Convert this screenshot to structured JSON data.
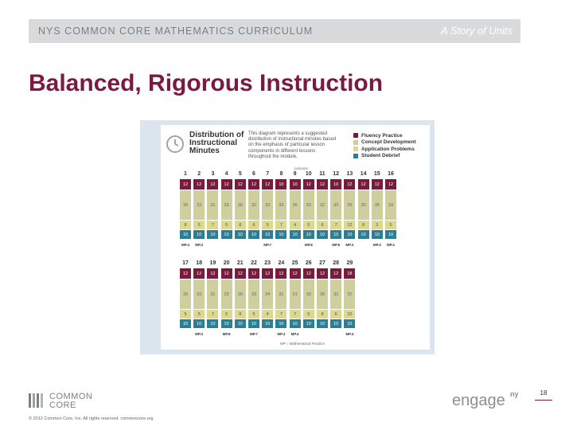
{
  "header": {
    "curriculum_label": "NYS COMMON CORE MATHEMATICS CURRICULUM",
    "series_label": "A Story of Units"
  },
  "slide_title": "Balanced, Rigorous Instruction",
  "figure": {
    "title": "Distribution of Instructional Minutes",
    "description": "This diagram represents a suggested distribution of instructional minutes based on the emphasis of particular lesson components in different lessons throughout the module.",
    "lessons_label": "Lessons",
    "legend": [
      {
        "label": "Fluency Practice",
        "color": "#7a1a3e"
      },
      {
        "label": "Concept Development",
        "color": "#cfcf9e"
      },
      {
        "label": "Application Problems",
        "color": "#dcd98a"
      },
      {
        "label": "Student Debrief",
        "color": "#2b7f94"
      }
    ],
    "rows": [
      {
        "lessons": [
          {
            "n": "1",
            "fluency": "12",
            "concept": "30",
            "app": "8",
            "debrief": "10"
          },
          {
            "n": "2",
            "fluency": "12",
            "concept": "33",
            "app": "5",
            "debrief": "10"
          },
          {
            "n": "3",
            "fluency": "12",
            "concept": "31",
            "app": "7",
            "debrief": "10"
          },
          {
            "n": "4",
            "fluency": "12",
            "concept": "33",
            "app": "5",
            "debrief": "10"
          },
          {
            "n": "5",
            "fluency": "12",
            "concept": "30",
            "app": "8",
            "debrief": "10"
          },
          {
            "n": "6",
            "fluency": "12",
            "concept": "32",
            "app": "6",
            "debrief": "10"
          },
          {
            "n": "7",
            "fluency": "12",
            "concept": "33",
            "app": "5",
            "debrief": "10"
          },
          {
            "n": "8",
            "fluency": "10",
            "concept": "33",
            "app": "7",
            "debrief": "10"
          },
          {
            "n": "9",
            "fluency": "10",
            "concept": "36",
            "app": "4",
            "debrief": "10"
          },
          {
            "n": "10",
            "fluency": "12",
            "concept": "33",
            "app": "5",
            "debrief": "10"
          },
          {
            "n": "11",
            "fluency": "12",
            "concept": "32",
            "app": "6",
            "debrief": "10"
          },
          {
            "n": "12",
            "fluency": "10",
            "concept": "33",
            "app": "7",
            "debrief": "10"
          },
          {
            "n": "13",
            "fluency": "12",
            "concept": "26",
            "app": "12",
            "debrief": "10"
          },
          {
            "n": "14",
            "fluency": "12",
            "concept": "30",
            "app": "8",
            "debrief": "10"
          },
          {
            "n": "15",
            "fluency": "12",
            "concept": "35",
            "app": "3",
            "debrief": "10"
          },
          {
            "n": "16",
            "fluency": "12",
            "concept": "33",
            "app": "5",
            "debrief": "10"
          }
        ],
        "mp_labels": [
          {
            "after": 0,
            "text": "MP.4"
          },
          {
            "after": 1,
            "text": "MP.2"
          },
          {
            "after": 6,
            "text": "MP.7"
          },
          {
            "after": 9,
            "text": "MP.8"
          },
          {
            "after": 11,
            "text": "MP.8"
          },
          {
            "after": 12,
            "text": "MP.3"
          },
          {
            "after": 14,
            "text": "MP.3"
          },
          {
            "after": 15,
            "text": "MP.2"
          }
        ]
      },
      {
        "lessons": [
          {
            "n": "17",
            "fluency": "12",
            "concept": "33",
            "app": "5",
            "debrief": "10"
          },
          {
            "n": "18",
            "fluency": "12",
            "concept": "33",
            "app": "5",
            "debrief": "10"
          },
          {
            "n": "19",
            "fluency": "12",
            "concept": "31",
            "app": "7",
            "debrief": "10"
          },
          {
            "n": "20",
            "fluency": "12",
            "concept": "33",
            "app": "5",
            "debrief": "10"
          },
          {
            "n": "21",
            "fluency": "12",
            "concept": "30",
            "app": "8",
            "debrief": "10"
          },
          {
            "n": "22",
            "fluency": "12",
            "concept": "33",
            "app": "5",
            "debrief": "10"
          },
          {
            "n": "23",
            "fluency": "12",
            "concept": "34",
            "app": "4",
            "debrief": "10"
          },
          {
            "n": "24",
            "fluency": "12",
            "concept": "31",
            "app": "7",
            "debrief": "10"
          },
          {
            "n": "25",
            "fluency": "12",
            "concept": "31",
            "app": "7",
            "debrief": "10"
          },
          {
            "n": "26",
            "fluency": "12",
            "concept": "33",
            "app": "5",
            "debrief": "10"
          },
          {
            "n": "27",
            "fluency": "12",
            "concept": "30",
            "app": "8",
            "debrief": "10"
          },
          {
            "n": "28",
            "fluency": "12",
            "concept": "32",
            "app": "6",
            "debrief": "10"
          },
          {
            "n": "29",
            "fluency": "18",
            "concept": "22",
            "app": "10",
            "debrief": "10"
          }
        ],
        "mp_labels": [
          {
            "after": 1,
            "text": "MP.2"
          },
          {
            "after": 3,
            "text": "MP.8"
          },
          {
            "after": 5,
            "text": "MP.7"
          },
          {
            "after": 7,
            "text": "MP.2"
          },
          {
            "after": 8,
            "text": "MP.4"
          },
          {
            "after": 12,
            "text": "MP.4"
          }
        ]
      }
    ],
    "footnote": "MP = Mathematical Practice"
  },
  "footer": {
    "logo_line1": "COMMON",
    "logo_line2": "CORE",
    "copyright": "© 2012 Common Core, Inc. All rights reserved. commoncore.org",
    "engage_text": "engage",
    "engage_ny": "ny",
    "page_number": "18"
  }
}
